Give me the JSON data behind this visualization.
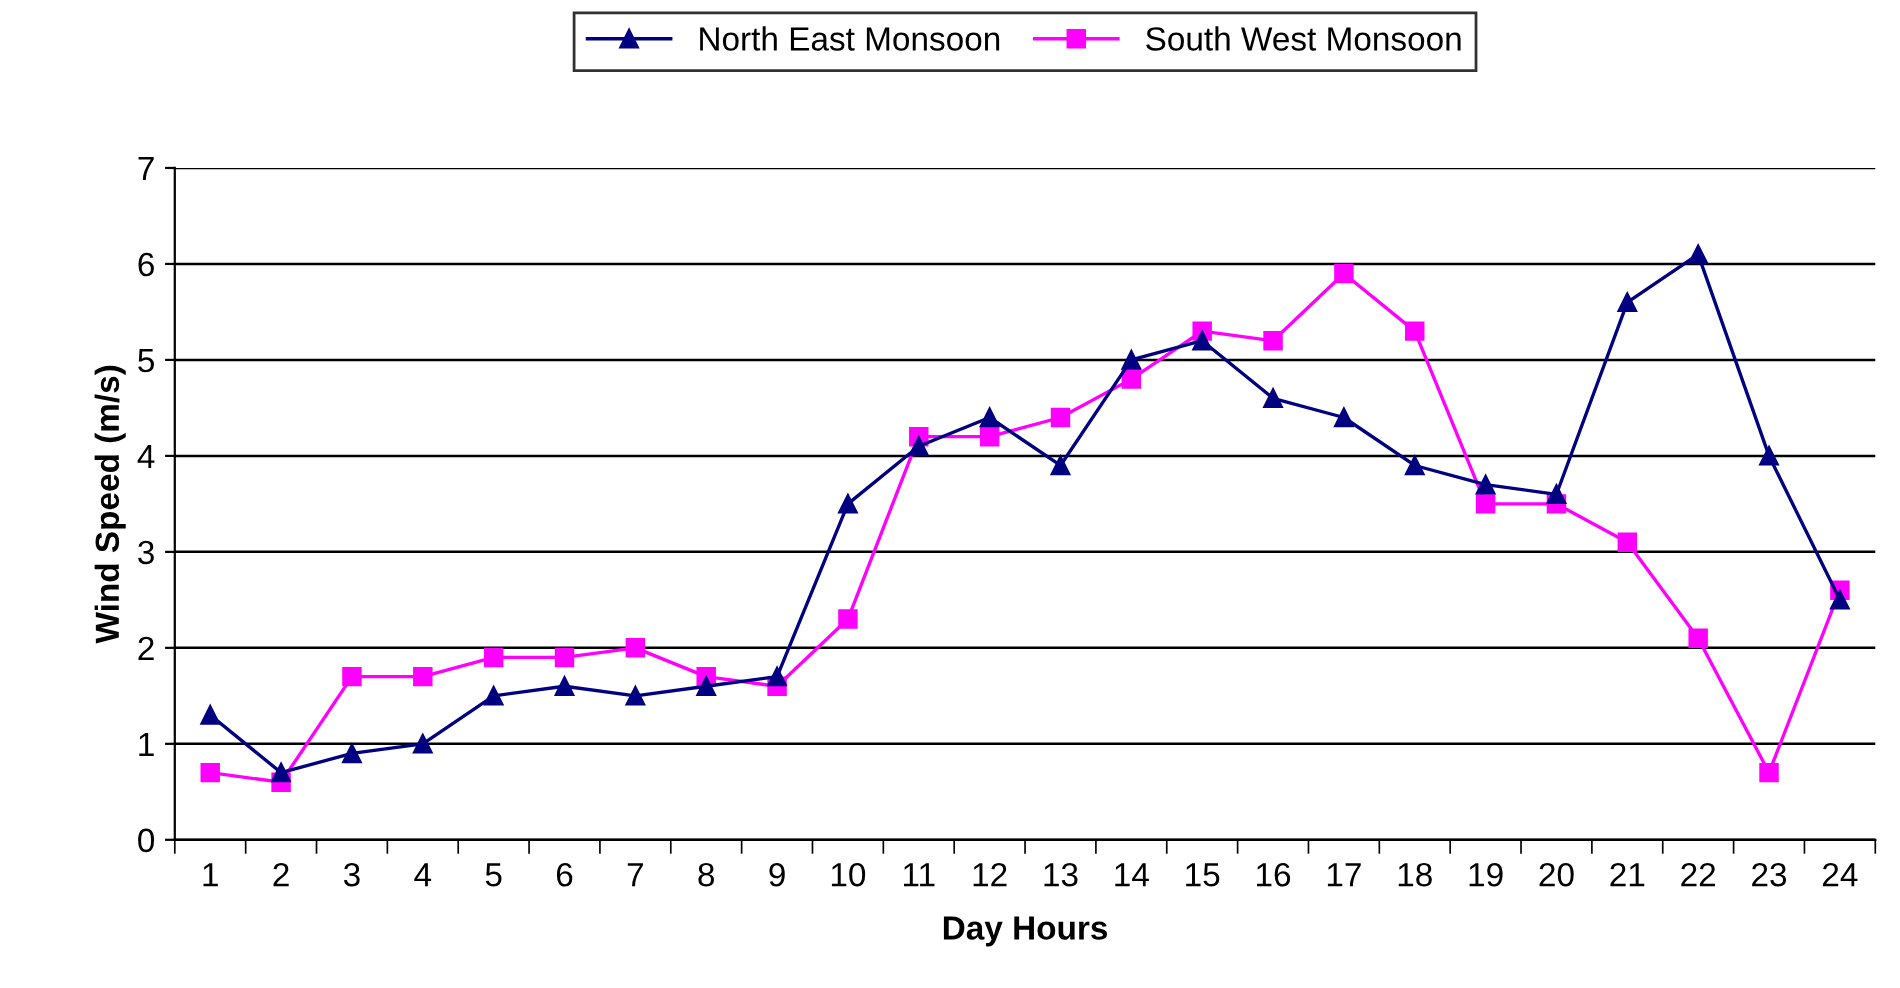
{
  "chart_data": {
    "type": "line",
    "xlabel": "Day Hours",
    "ylabel": "Wind Speed (m/s)",
    "categories": [
      "1",
      "2",
      "3",
      "4",
      "5",
      "6",
      "7",
      "8",
      "9",
      "10",
      "11",
      "12",
      "13",
      "14",
      "15",
      "16",
      "17",
      "18",
      "19",
      "20",
      "21",
      "22",
      "23",
      "24"
    ],
    "series": [
      {
        "name": "North East Monsoon",
        "color": "#000080",
        "marker": "triangle",
        "values": [
          1.3,
          0.7,
          0.9,
          1.0,
          1.5,
          1.6,
          1.5,
          1.6,
          1.7,
          3.5,
          4.1,
          4.4,
          3.9,
          5.0,
          5.2,
          4.6,
          4.4,
          3.9,
          3.7,
          3.6,
          5.6,
          6.1,
          4.0,
          2.5
        ]
      },
      {
        "name": "South West Monsoon",
        "color": "#ff00ff",
        "marker": "square",
        "values": [
          0.7,
          0.6,
          1.7,
          1.7,
          1.9,
          1.9,
          2.0,
          1.7,
          1.6,
          2.3,
          4.2,
          4.2,
          4.4,
          4.8,
          5.3,
          5.2,
          5.9,
          5.3,
          3.5,
          3.5,
          3.1,
          2.1,
          0.7,
          2.6
        ]
      }
    ],
    "ylim": [
      0,
      7
    ],
    "yticks": [
      0,
      1,
      2,
      3,
      4,
      5,
      6,
      7
    ],
    "grid": "y",
    "legend": "top"
  }
}
